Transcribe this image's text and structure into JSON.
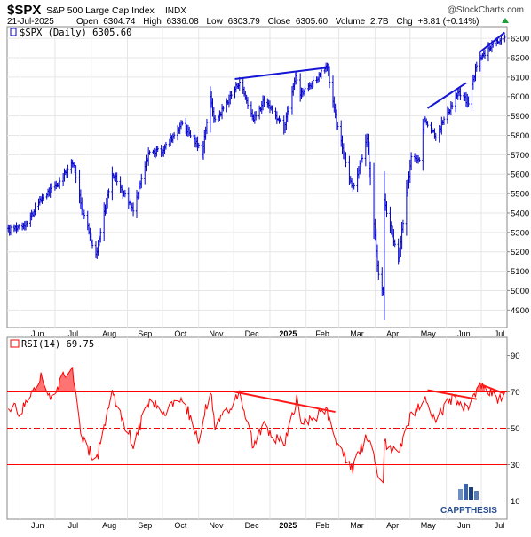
{
  "header": {
    "symbol": "$SPX",
    "name": "S&P 500 Large Cap Index",
    "exchange": "INDX",
    "watermark": "@StockCharts.com",
    "date": "21-Jul-2025",
    "open_label": "Open",
    "open": "6304.74",
    "high_label": "High",
    "high": "6336.08",
    "low_label": "Low",
    "low": "6303.79",
    "close_label": "Close",
    "close": "6305.60",
    "volume_label": "Volume",
    "volume": "2.7B",
    "chg_label": "Chg",
    "chg": "+8.81 (+0.14%)"
  },
  "price_legend": "$SPX (Daily) 6305.60",
  "rsi_legend": "RSI(14) 69.75",
  "logo_text": "CAPPTHESIS",
  "colors": {
    "price": "#0000cc",
    "rsi": "#ff0000",
    "trend_price": "#1515d4",
    "trend_rsi": "#ff1a1a",
    "grid": "#e6e6e6",
    "overbought_fill": "#ff0000"
  },
  "chart_data": [
    {
      "type": "ohlc",
      "series_name": "$SPX (Daily)",
      "ylim": [
        4810,
        6360
      ],
      "y_ticks": [
        4900,
        5000,
        5100,
        5200,
        5300,
        5400,
        5500,
        5600,
        5700,
        5800,
        5900,
        6000,
        6100,
        6200,
        6300
      ],
      "x_ticks": [
        "Jun",
        "Jul",
        "Aug",
        "Sep",
        "Oct",
        "Nov",
        "Dec",
        "2025",
        "Feb",
        "Mar",
        "Apr",
        "May",
        "Jun",
        "Jul"
      ],
      "anchors": [
        [
          "2024-05-22",
          5310
        ],
        [
          "2024-06-07",
          5350
        ],
        [
          "2024-06-20",
          5480
        ],
        [
          "2024-07-05",
          5560
        ],
        [
          "2024-07-16",
          5665
        ],
        [
          "2024-07-24",
          5430
        ],
        [
          "2024-08-05",
          5180
        ],
        [
          "2024-08-19",
          5610
        ],
        [
          "2024-09-06",
          5410
        ],
        [
          "2024-09-19",
          5710
        ],
        [
          "2024-10-01",
          5720
        ],
        [
          "2024-10-18",
          5865
        ],
        [
          "2024-11-04",
          5715
        ],
        [
          "2024-11-11",
          5990
        ],
        [
          "2024-11-15",
          5870
        ],
        [
          "2024-12-06",
          6080
        ],
        [
          "2024-12-18",
          5880
        ],
        [
          "2024-12-27",
          5980
        ],
        [
          "2025-01-13",
          5840
        ],
        [
          "2025-01-23",
          6120
        ],
        [
          "2025-01-27",
          6010
        ],
        [
          "2025-02-19",
          6150
        ],
        [
          "2025-02-27",
          5860
        ],
        [
          "2025-03-13",
          5520
        ],
        [
          "2025-03-25",
          5780
        ],
        [
          "2025-04-04",
          5070
        ],
        [
          "2025-04-08",
          4980
        ],
        [
          "2025-04-09",
          5460
        ],
        [
          "2025-04-21",
          5160
        ],
        [
          "2025-05-02",
          5690
        ],
        [
          "2025-05-09",
          5660
        ],
        [
          "2025-05-13",
          5890
        ],
        [
          "2025-05-23",
          5800
        ],
        [
          "2025-06-11",
          6020
        ],
        [
          "2025-06-20",
          5970
        ],
        [
          "2025-06-27",
          6170
        ],
        [
          "2025-07-10",
          6270
        ],
        [
          "2025-07-21",
          6305
        ]
      ],
      "trendlines": [
        [
          [
            "2024-12-02",
            6090
          ],
          [
            "2025-02-21",
            6150
          ]
        ],
        [
          [
            "2025-05-16",
            5940
          ],
          [
            "2025-06-18",
            6070
          ]
        ],
        [
          [
            "2025-06-30",
            6230
          ],
          [
            "2025-07-21",
            6330
          ]
        ]
      ]
    },
    {
      "type": "line",
      "series_name": "RSI(14)",
      "ylim": [
        0,
        100
      ],
      "y_ticks": [
        10,
        30,
        50,
        70,
        90
      ],
      "levels": [
        70,
        50,
        30
      ],
      "anchors": [
        [
          "2024-05-22",
          64
        ],
        [
          "2024-05-31",
          58
        ],
        [
          "2024-06-12",
          72
        ],
        [
          "2024-06-20",
          78
        ],
        [
          "2024-06-28",
          66
        ],
        [
          "2024-07-10",
          80
        ],
        [
          "2024-07-16",
          82
        ],
        [
          "2024-07-24",
          45
        ],
        [
          "2024-08-05",
          31
        ],
        [
          "2024-08-19",
          68
        ],
        [
          "2024-09-06",
          42
        ],
        [
          "2024-09-19",
          64
        ],
        [
          "2024-10-04",
          60
        ],
        [
          "2024-10-18",
          68
        ],
        [
          "2024-11-01",
          44
        ],
        [
          "2024-11-11",
          72
        ],
        [
          "2024-11-15",
          50
        ],
        [
          "2024-12-06",
          68
        ],
        [
          "2024-12-18",
          40
        ],
        [
          "2024-12-27",
          52
        ],
        [
          "2025-01-13",
          40
        ],
        [
          "2025-01-24",
          65
        ],
        [
          "2025-01-27",
          52
        ],
        [
          "2025-02-19",
          60
        ],
        [
          "2025-02-28",
          40
        ],
        [
          "2025-03-10",
          30
        ],
        [
          "2025-03-13",
          28
        ],
        [
          "2025-03-25",
          46
        ],
        [
          "2025-04-04",
          24
        ],
        [
          "2025-04-08",
          20
        ],
        [
          "2025-04-09",
          42
        ],
        [
          "2025-04-21",
          36
        ],
        [
          "2025-05-02",
          58
        ],
        [
          "2025-05-13",
          66
        ],
        [
          "2025-05-23",
          55
        ],
        [
          "2025-06-06",
          67
        ],
        [
          "2025-06-20",
          60
        ],
        [
          "2025-06-27",
          70
        ],
        [
          "2025-07-03",
          74
        ],
        [
          "2025-07-10",
          69
        ],
        [
          "2025-07-15",
          63
        ],
        [
          "2025-07-21",
          69.75
        ]
      ],
      "trendlines": [
        [
          [
            "2024-12-02",
            70
          ],
          [
            "2025-02-26",
            59
          ]
        ],
        [
          [
            "2025-05-16",
            71
          ],
          [
            "2025-06-27",
            66
          ]
        ],
        [
          [
            "2025-07-01",
            74
          ],
          [
            "2025-07-21",
            69
          ]
        ]
      ]
    }
  ]
}
